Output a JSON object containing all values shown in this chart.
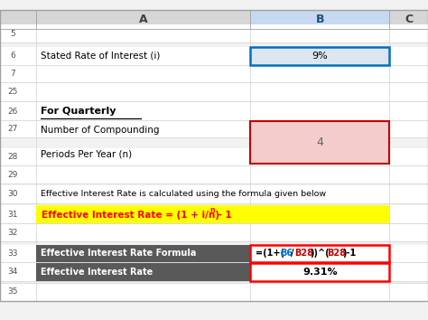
{
  "fig_width": 4.74,
  "fig_height": 3.54,
  "dpi": 100,
  "bg_color": "#ffffff",
  "grid_color": "#d0d0d0",
  "yellow_bg": "#ffff00",
  "pink_bg": "#f4cccc",
  "dark_header_bg": "#595959",
  "formula_border": "#ff0000",
  "blue_border": "#0070c0",
  "pink_border": "#c00000",
  "light_blue_bg": "#dce6f1",
  "col_b_header_bg": "#c6d9f1",
  "row6_val": "9%",
  "row28_val": "4",
  "row30_text": "Effective Interest Rate is calculated using the formula given below",
  "row31_formula": "Effective Interest Rate = (1 + i/n)",
  "row31_superscript": "n",
  "row31_formula_end": " – 1",
  "row33_label": "Effective Interest Rate Formula",
  "row34_label": "Effective Interest Rate",
  "row34_val": "9.31%",
  "for_quarterly": "For Quarterly"
}
